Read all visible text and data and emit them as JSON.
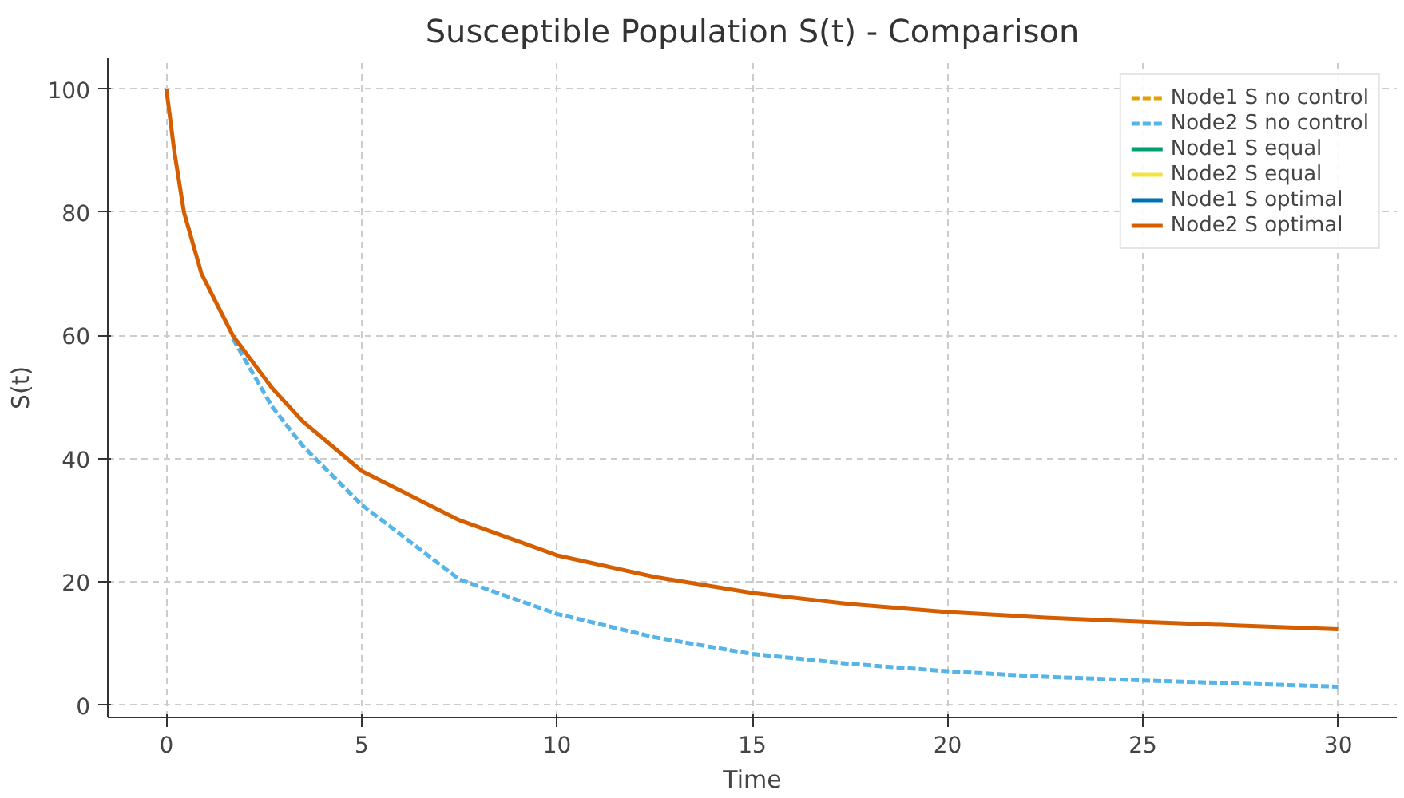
{
  "chart_data": {
    "type": "line",
    "title": "Susceptible Population S(t) - Comparison",
    "xlabel": "Time",
    "ylabel": "S(t)",
    "x": [
      0,
      0.2,
      0.45,
      0.9,
      1.7,
      2.7,
      3.5,
      5,
      7.5,
      10,
      12.5,
      15,
      17.5,
      20,
      22.5,
      25,
      27.5,
      30
    ],
    "xlim": [
      -1.5,
      31.5
    ],
    "ylim": [
      -2,
      105
    ],
    "xticks": [
      0,
      5,
      10,
      15,
      20,
      25,
      30
    ],
    "yticks": [
      0,
      20,
      40,
      60,
      80,
      100
    ],
    "grid": true,
    "legend": "top right",
    "series": [
      {
        "name": "Node1 S no control",
        "color": "#e69f00",
        "line_style": "dashed",
        "values": [
          null,
          null,
          null,
          null,
          null,
          null,
          null,
          null,
          null,
          null,
          null,
          null,
          null,
          null,
          null,
          null,
          null,
          null
        ]
      },
      {
        "name": "Node2 S no control",
        "color": "#56b4e9",
        "line_style": "dashed",
        "values": [
          null,
          null,
          null,
          null,
          59.5,
          48.5,
          42,
          32.5,
          20.4,
          14.8,
          11,
          8.3,
          6.7,
          5.5,
          4.6,
          4.0,
          3.5,
          3.0
        ]
      },
      {
        "name": "Node1 S equal",
        "color": "#009e73",
        "line_style": "solid",
        "values": [
          null,
          null,
          null,
          null,
          null,
          null,
          null,
          null,
          null,
          null,
          null,
          null,
          null,
          null,
          null,
          null,
          null,
          null
        ]
      },
      {
        "name": "Node2 S equal",
        "color": "#f0e442",
        "line_style": "solid",
        "values": [
          null,
          null,
          null,
          null,
          null,
          null,
          null,
          null,
          null,
          null,
          null,
          null,
          null,
          null,
          null,
          null,
          null,
          null
        ]
      },
      {
        "name": "Node1 S optimal",
        "color": "#0072b2",
        "line_style": "solid",
        "values": [
          null,
          null,
          null,
          null,
          null,
          null,
          null,
          null,
          null,
          null,
          null,
          null,
          null,
          null,
          null,
          null,
          null,
          null
        ]
      },
      {
        "name": "Node2 S optimal",
        "color": "#d55e00",
        "line_style": "solid",
        "values": [
          100,
          90,
          80,
          70,
          60,
          51.5,
          46,
          38,
          30,
          24.3,
          20.8,
          18.2,
          16.4,
          15.1,
          14.2,
          13.5,
          12.9,
          12.3
        ]
      }
    ]
  }
}
